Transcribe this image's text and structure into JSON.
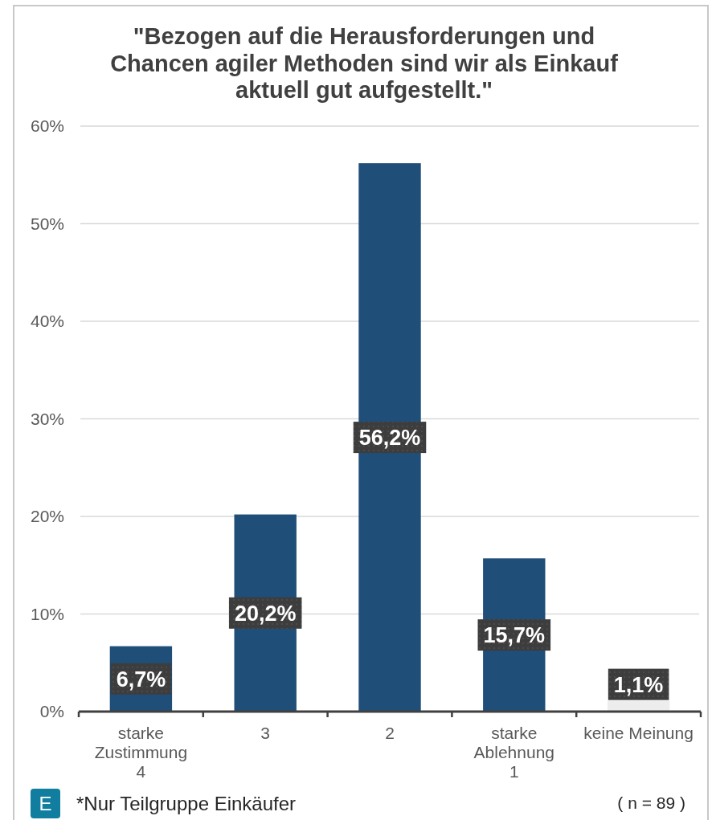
{
  "chart_data": {
    "type": "bar",
    "title": "\"Bezogen auf die Herausforderungen und Chancen agiler Methoden sind wir als Einkauf aktuell gut aufgestellt.\"",
    "categories": [
      "starke\nZustimmung\n4",
      "3",
      "2",
      "starke\nAblehnung\n1",
      "keine Meinung"
    ],
    "values": [
      6.7,
      20.2,
      56.2,
      15.7,
      1.1
    ],
    "colors": [
      "#1f4e79",
      "#1f4e79",
      "#1f4e79",
      "#1f4e79",
      "#ededed"
    ],
    "value_labels": [
      "6,7%",
      "20,2%",
      "56,2%",
      "15,7%",
      "1,1%"
    ],
    "ylim": [
      0,
      60
    ],
    "yticks": [
      {
        "value": 0,
        "label": "0%"
      },
      {
        "value": 10,
        "label": "10%"
      },
      {
        "value": 20,
        "label": "20%"
      },
      {
        "value": 30,
        "label": "30%"
      },
      {
        "value": 40,
        "label": "40%"
      },
      {
        "value": 50,
        "label": "50%"
      },
      {
        "value": 60,
        "label": "60%"
      }
    ],
    "grid": "y",
    "annotations": [
      "E",
      "*Nur Teilgruppe Einkäufer",
      "( n = 89 )"
    ]
  }
}
